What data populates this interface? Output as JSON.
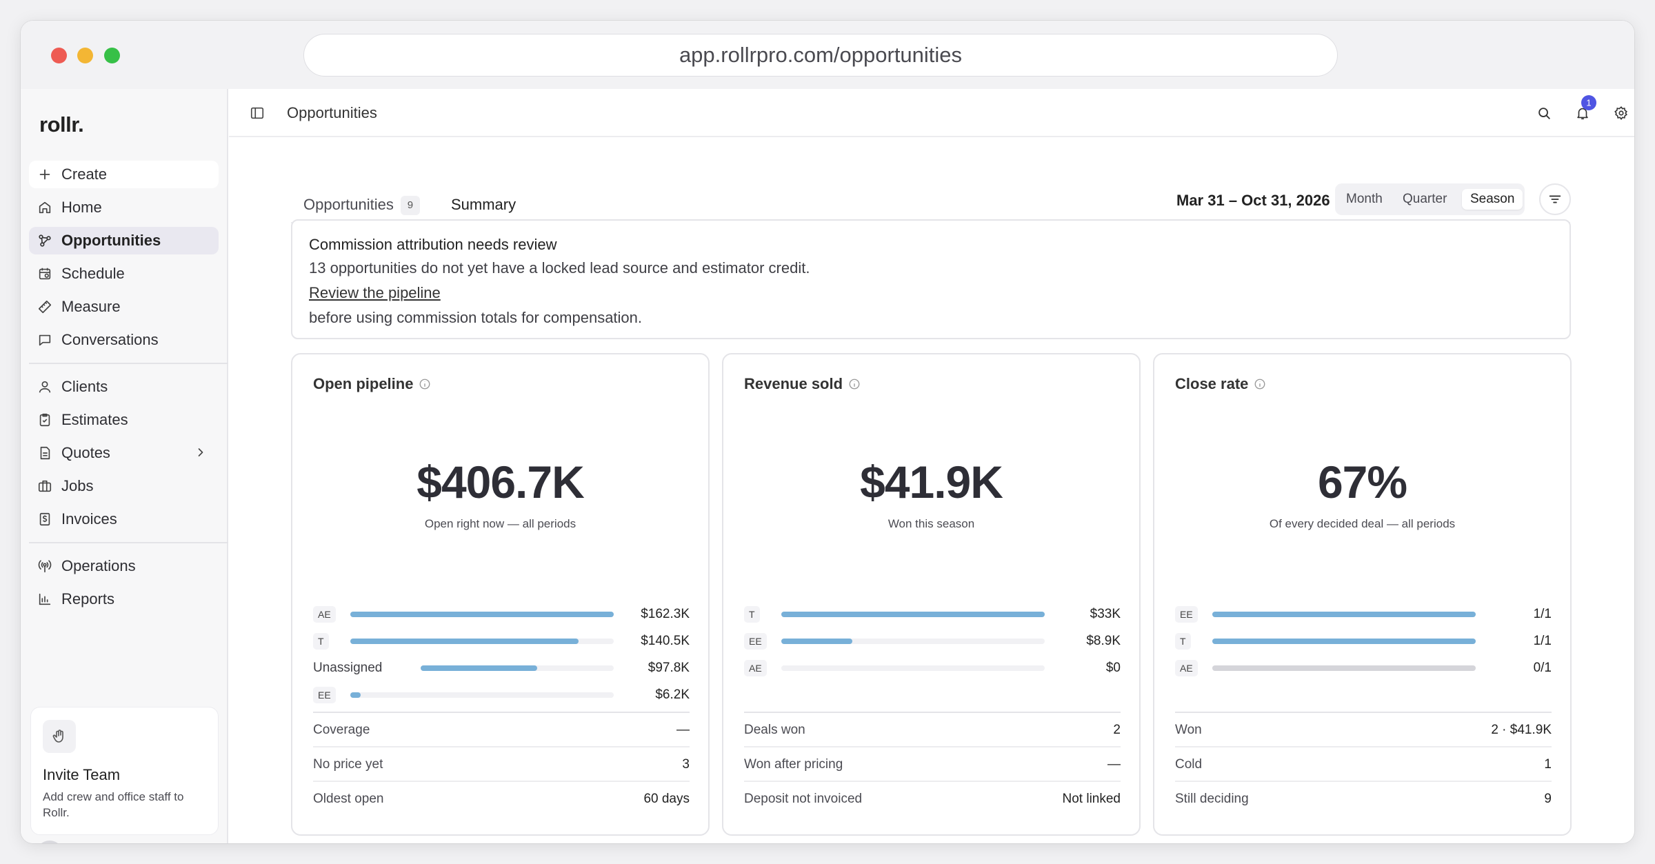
{
  "browser": {
    "url": "app.rollrpro.com/opportunities"
  },
  "sidebar": {
    "logo": "rollr.",
    "items": [
      {
        "label": "Create",
        "icon": "plus-icon"
      },
      {
        "label": "Home",
        "icon": "home-icon"
      },
      {
        "label": "Opportunities",
        "icon": "opportunities-icon",
        "active": true
      },
      {
        "label": "Schedule",
        "icon": "calendar-icon"
      },
      {
        "label": "Measure",
        "icon": "ruler-icon"
      },
      {
        "label": "Conversations",
        "icon": "chat-icon"
      },
      {
        "label": "Clients",
        "icon": "user-icon"
      },
      {
        "label": "Estimates",
        "icon": "clipboard-icon"
      },
      {
        "label": "Quotes",
        "icon": "document-icon"
      },
      {
        "label": "Jobs",
        "icon": "briefcase-icon"
      },
      {
        "label": "Invoices",
        "icon": "invoice-icon"
      },
      {
        "label": "Operations",
        "icon": "broadcast-icon"
      },
      {
        "label": "Reports",
        "icon": "bar-chart-icon"
      }
    ],
    "invite": {
      "title": "Invite Team",
      "description": "Add crew and office staff to Rollr."
    }
  },
  "topbar": {
    "title": "Opportunities",
    "notification_count": "1"
  },
  "tabs": [
    {
      "label": "Opportunities",
      "count": "9"
    },
    {
      "label": "Summary",
      "active": true
    }
  ],
  "period": {
    "date_range": "Mar 31 – Oct 31, 2026",
    "options": [
      "Month",
      "Quarter",
      "Season"
    ],
    "selected": "Season"
  },
  "alert": {
    "title": "Commission attribution needs review",
    "description": "13 opportunities do not yet have a locked lead source and estimator credit.",
    "link": "Review the pipeline",
    "suffix": "before using commission totals for compensation."
  },
  "cards": [
    {
      "title": "Open pipeline",
      "value": "$406.7K",
      "caption": "Open right now — all periods",
      "bars": [
        {
          "label": "AE",
          "tag": true,
          "value": "$162.3K",
          "fraction": 1.0
        },
        {
          "label": "T",
          "tag": true,
          "value": "$140.5K",
          "fraction": 0.866
        },
        {
          "label": "Unassigned",
          "tag": false,
          "value": "$97.8K",
          "fraction": 0.603
        },
        {
          "label": "EE",
          "tag": true,
          "value": "$6.2K",
          "fraction": 0.038
        }
      ],
      "stats": [
        {
          "label": "Coverage",
          "value": "—"
        },
        {
          "label": "No price yet",
          "value": "3"
        },
        {
          "label": "Oldest open",
          "value": "60 days"
        }
      ]
    },
    {
      "title": "Revenue sold",
      "value": "$41.9K",
      "caption": "Won this season",
      "bars": [
        {
          "label": "T",
          "tag": true,
          "value": "$33K",
          "fraction": 1.0
        },
        {
          "label": "EE",
          "tag": true,
          "value": "$8.9K",
          "fraction": 0.27
        },
        {
          "label": "AE",
          "tag": true,
          "value": "$0",
          "fraction": 0
        }
      ],
      "stats": [
        {
          "label": "Deals won",
          "value": "2"
        },
        {
          "label": "Won after pricing",
          "value": "—"
        },
        {
          "label": "Deposit not invoiced",
          "value": "Not linked"
        }
      ]
    },
    {
      "title": "Close rate",
      "value": "67%",
      "caption": "Of every decided deal — all periods",
      "bars": [
        {
          "label": "EE",
          "tag": true,
          "value": "1/1",
          "fraction": 1.0
        },
        {
          "label": "T",
          "tag": true,
          "value": "1/1",
          "fraction": 1.0
        },
        {
          "label": "AE",
          "tag": true,
          "value": "0/1",
          "fraction": 1.0,
          "muted": true
        }
      ],
      "stats": [
        {
          "label": "Won",
          "value": "2 · $41.9K"
        },
        {
          "label": "Cold",
          "value": "1"
        },
        {
          "label": "Still deciding",
          "value": "9"
        }
      ]
    }
  ]
}
